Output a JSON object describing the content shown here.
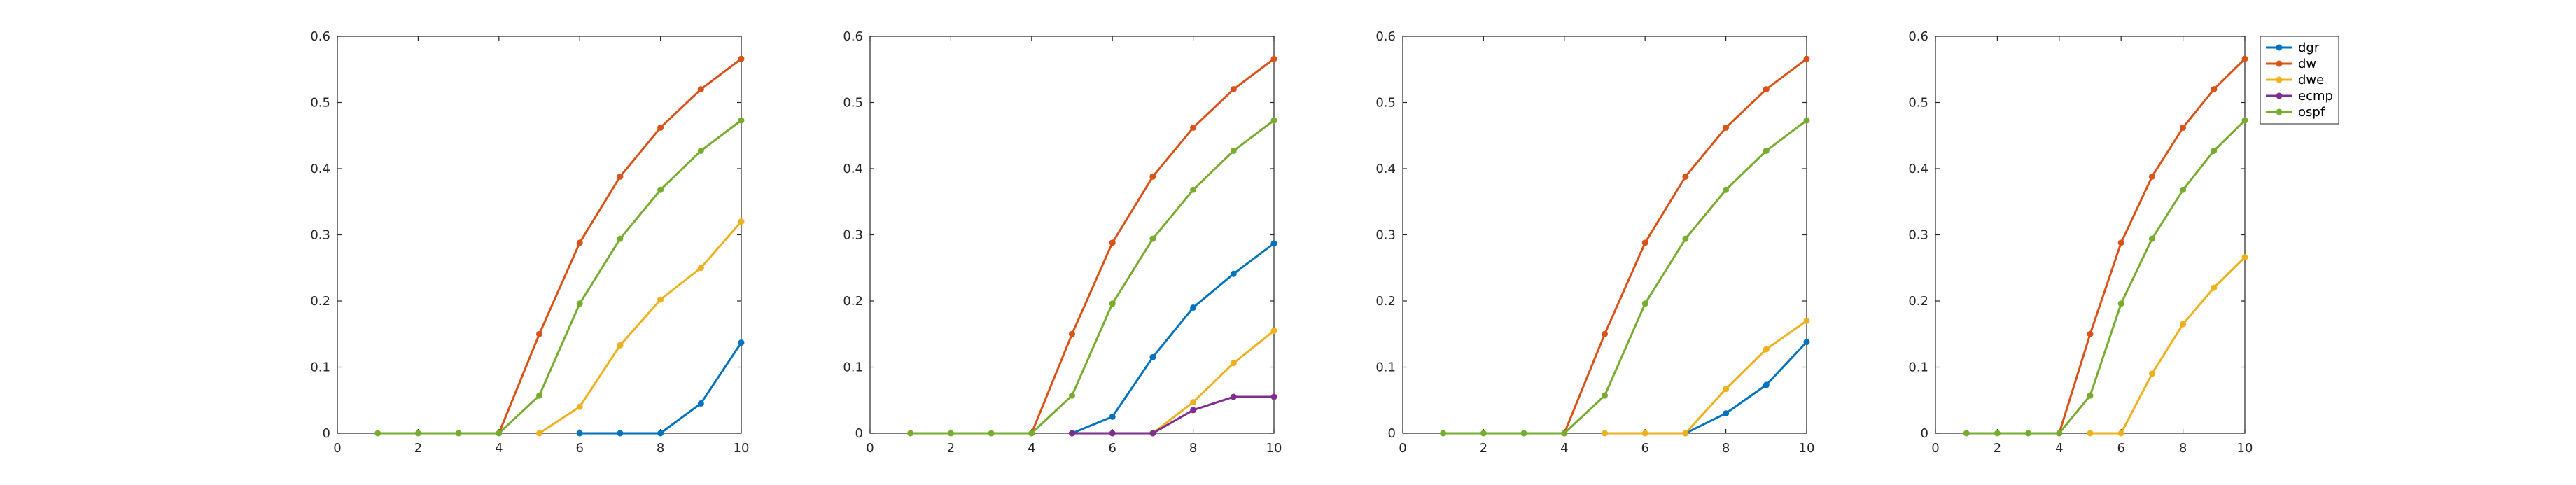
{
  "chart_data": [
    {
      "type": "line",
      "xlim": [
        0,
        10
      ],
      "ylim": [
        0,
        0.6
      ],
      "xticks": [
        "0",
        "2",
        "4",
        "6",
        "8",
        "10"
      ],
      "yticks": [
        "0",
        "0.1",
        "0.2",
        "0.3",
        "0.4",
        "0.5",
        "0.6"
      ],
      "grid": false,
      "series": [
        {
          "name": "dgr",
          "color": "#0072BD",
          "x": [
            6,
            7,
            8,
            9,
            10
          ],
          "values": [
            0,
            0,
            0,
            0.045,
            0.137
          ]
        },
        {
          "name": "dw",
          "color": "#D95319",
          "x": [
            4,
            5,
            6,
            7,
            8,
            9,
            10
          ],
          "values": [
            0,
            0.15,
            0.288,
            0.388,
            0.462,
            0.52,
            0.566
          ]
        },
        {
          "name": "dwe",
          "color": "#EDB120",
          "x": [
            5,
            6,
            7,
            8,
            9,
            10
          ],
          "values": [
            0,
            0.04,
            0.133,
            0.202,
            0.25,
            0.32
          ]
        },
        {
          "name": "ospf",
          "color": "#77AC30",
          "x": [
            1,
            2,
            3,
            4,
            5,
            6,
            7,
            8,
            9,
            10
          ],
          "values": [
            0,
            0,
            0,
            0,
            0.057,
            0.196,
            0.294,
            0.368,
            0.427,
            0.473
          ]
        }
      ]
    },
    {
      "type": "line",
      "xlim": [
        0,
        10
      ],
      "ylim": [
        0,
        0.6
      ],
      "xticks": [
        "0",
        "2",
        "4",
        "6",
        "8",
        "10"
      ],
      "yticks": [
        "0",
        "0.1",
        "0.2",
        "0.3",
        "0.4",
        "0.5",
        "0.6"
      ],
      "grid": false,
      "series": [
        {
          "name": "dgr",
          "color": "#0072BD",
          "x": [
            5,
            6,
            7,
            8,
            9,
            10
          ],
          "values": [
            0,
            0.025,
            0.115,
            0.19,
            0.241,
            0.287
          ]
        },
        {
          "name": "dw",
          "color": "#D95319",
          "x": [
            4,
            5,
            6,
            7,
            8,
            9,
            10
          ],
          "values": [
            0,
            0.15,
            0.288,
            0.388,
            0.462,
            0.52,
            0.566
          ]
        },
        {
          "name": "dwe",
          "color": "#EDB120",
          "x": [
            7,
            8,
            9,
            10
          ],
          "values": [
            0,
            0.047,
            0.106,
            0.155
          ]
        },
        {
          "name": "ecmp",
          "color": "#7E2F8E",
          "x": [
            5,
            6,
            7,
            8,
            9,
            10
          ],
          "values": [
            0,
            0,
            0,
            0.035,
            0.055,
            0.055
          ]
        },
        {
          "name": "ospf",
          "color": "#77AC30",
          "x": [
            1,
            2,
            3,
            4,
            5,
            6,
            7,
            8,
            9,
            10
          ],
          "values": [
            0,
            0,
            0,
            0,
            0.057,
            0.196,
            0.294,
            0.368,
            0.427,
            0.473
          ]
        }
      ]
    },
    {
      "type": "line",
      "xlim": [
        0,
        10
      ],
      "ylim": [
        0,
        0.6
      ],
      "xticks": [
        "0",
        "2",
        "4",
        "6",
        "8",
        "10"
      ],
      "yticks": [
        "0",
        "0.1",
        "0.2",
        "0.3",
        "0.4",
        "0.5",
        "0.6"
      ],
      "grid": false,
      "series": [
        {
          "name": "dgr",
          "color": "#0072BD",
          "x": [
            7,
            8,
            9,
            10
          ],
          "values": [
            0,
            0.03,
            0.073,
            0.138
          ]
        },
        {
          "name": "dw",
          "color": "#D95319",
          "x": [
            4,
            5,
            6,
            7,
            8,
            9,
            10
          ],
          "values": [
            0,
            0.15,
            0.288,
            0.388,
            0.462,
            0.52,
            0.566
          ]
        },
        {
          "name": "dwe",
          "color": "#EDB120",
          "x": [
            5,
            6,
            7,
            8,
            9,
            10
          ],
          "values": [
            0,
            0,
            0,
            0.067,
            0.127,
            0.17
          ]
        },
        {
          "name": "ospf",
          "color": "#77AC30",
          "x": [
            1,
            2,
            3,
            4,
            5,
            6,
            7,
            8,
            9,
            10
          ],
          "values": [
            0,
            0,
            0,
            0,
            0.057,
            0.196,
            0.294,
            0.368,
            0.427,
            0.473
          ]
        }
      ]
    },
    {
      "type": "line",
      "xlim": [
        0,
        10
      ],
      "ylim": [
        0,
        0.6
      ],
      "xticks": [
        "0",
        "2",
        "4",
        "6",
        "8",
        "10"
      ],
      "yticks": [
        "0",
        "0.1",
        "0.2",
        "0.3",
        "0.4",
        "0.5",
        "0.6"
      ],
      "grid": false,
      "legend_position": "outside-top-right",
      "legend": [
        {
          "name": "dgr",
          "color": "#0072BD"
        },
        {
          "name": "dw",
          "color": "#D95319"
        },
        {
          "name": "dwe",
          "color": "#EDB120"
        },
        {
          "name": "ecmp",
          "color": "#7E2F8E"
        },
        {
          "name": "ospf",
          "color": "#77AC30"
        }
      ],
      "series": [
        {
          "name": "dw",
          "color": "#D95319",
          "x": [
            4,
            5,
            6,
            7,
            8,
            9,
            10
          ],
          "values": [
            0,
            0.15,
            0.288,
            0.388,
            0.462,
            0.52,
            0.566
          ]
        },
        {
          "name": "dwe",
          "color": "#EDB120",
          "x": [
            5,
            6,
            7,
            8,
            9,
            10
          ],
          "values": [
            0,
            0,
            0.09,
            0.165,
            0.22,
            0.266
          ]
        },
        {
          "name": "ospf",
          "color": "#77AC30",
          "x": [
            1,
            2,
            3,
            4,
            5,
            6,
            7,
            8,
            9,
            10
          ],
          "values": [
            0,
            0,
            0,
            0,
            0.057,
            0.196,
            0.294,
            0.368,
            0.427,
            0.473
          ]
        }
      ]
    }
  ]
}
